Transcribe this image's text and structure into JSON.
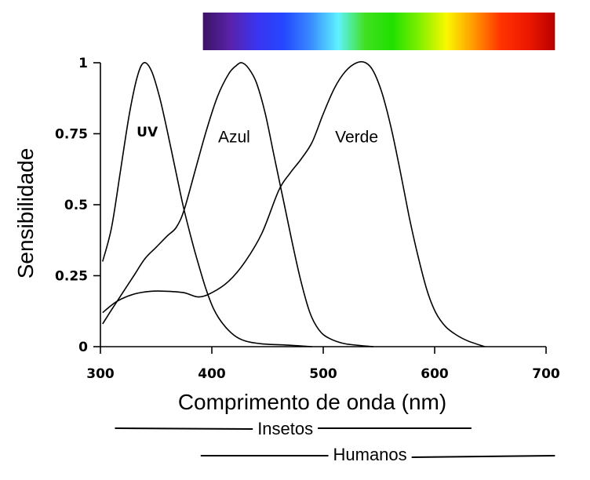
{
  "chart_data": {
    "type": "line",
    "xlabel": "Comprimento de onda (nm)",
    "ylabel": "Sensibilidade",
    "xlim": [
      300,
      700
    ],
    "ylim": [
      0,
      1
    ],
    "x_ticks": [
      300,
      400,
      500,
      600,
      700
    ],
    "y_ticks": [
      {
        "value": 0,
        "label": "0"
      },
      {
        "value": 0.25,
        "label": "0.25"
      },
      {
        "value": 0.5,
        "label": "0.5"
      },
      {
        "value": 0.75,
        "label": "0.75"
      },
      {
        "value": 1,
        "label": "1"
      }
    ],
    "grid": false,
    "series": [
      {
        "name": "UV",
        "points": [
          [
            302,
            0.3
          ],
          [
            310,
            0.42
          ],
          [
            318,
            0.62
          ],
          [
            326,
            0.82
          ],
          [
            333,
            0.95
          ],
          [
            339,
            1.0
          ],
          [
            346,
            0.97
          ],
          [
            353,
            0.88
          ],
          [
            360,
            0.76
          ],
          [
            367,
            0.63
          ],
          [
            374,
            0.5
          ],
          [
            381,
            0.39
          ],
          [
            388,
            0.29
          ],
          [
            395,
            0.2
          ],
          [
            402,
            0.13
          ],
          [
            410,
            0.08
          ],
          [
            420,
            0.04
          ],
          [
            430,
            0.02
          ],
          [
            445,
            0.01
          ],
          [
            470,
            0.005
          ],
          [
            490,
            0.0
          ]
        ]
      },
      {
        "name": "Azul",
        "points": [
          [
            302,
            0.08
          ],
          [
            310,
            0.13
          ],
          [
            320,
            0.19
          ],
          [
            330,
            0.25
          ],
          [
            340,
            0.31
          ],
          [
            350,
            0.35
          ],
          [
            360,
            0.39
          ],
          [
            368,
            0.42
          ],
          [
            375,
            0.48
          ],
          [
            385,
            0.62
          ],
          [
            395,
            0.76
          ],
          [
            405,
            0.88
          ],
          [
            415,
            0.96
          ],
          [
            422,
            0.99
          ],
          [
            427,
            1.0
          ],
          [
            433,
            0.98
          ],
          [
            440,
            0.93
          ],
          [
            448,
            0.82
          ],
          [
            456,
            0.67
          ],
          [
            464,
            0.52
          ],
          [
            472,
            0.37
          ],
          [
            480,
            0.23
          ],
          [
            488,
            0.12
          ],
          [
            496,
            0.06
          ],
          [
            505,
            0.03
          ],
          [
            520,
            0.01
          ],
          [
            545,
            0.0
          ]
        ]
      },
      {
        "name": "Verde",
        "points": [
          [
            302,
            0.12
          ],
          [
            315,
            0.16
          ],
          [
            330,
            0.185
          ],
          [
            345,
            0.195
          ],
          [
            360,
            0.195
          ],
          [
            375,
            0.19
          ],
          [
            388,
            0.175
          ],
          [
            400,
            0.19
          ],
          [
            415,
            0.23
          ],
          [
            430,
            0.3
          ],
          [
            445,
            0.4
          ],
          [
            460,
            0.55
          ],
          [
            470,
            0.61
          ],
          [
            480,
            0.66
          ],
          [
            490,
            0.72
          ],
          [
            500,
            0.82
          ],
          [
            510,
            0.91
          ],
          [
            520,
            0.97
          ],
          [
            530,
            1.0
          ],
          [
            538,
            1.0
          ],
          [
            545,
            0.97
          ],
          [
            553,
            0.89
          ],
          [
            561,
            0.77
          ],
          [
            569,
            0.62
          ],
          [
            577,
            0.46
          ],
          [
            585,
            0.32
          ],
          [
            593,
            0.2
          ],
          [
            601,
            0.12
          ],
          [
            610,
            0.07
          ],
          [
            620,
            0.04
          ],
          [
            630,
            0.02
          ],
          [
            645,
            0.0
          ]
        ]
      }
    ],
    "curve_labels": [
      {
        "text": "UV",
        "x": 342,
        "y": 0.74,
        "bold": true
      },
      {
        "text": "Azul",
        "x": 420,
        "y": 0.72,
        "bold": false
      },
      {
        "text": "Verde",
        "x": 530,
        "y": 0.72,
        "bold": false
      }
    ],
    "spectrum_bar": {
      "x_start": 392,
      "x_end": 708,
      "colors": [
        "#3b1464",
        "#5a22a8",
        "#3a34f0",
        "#2448ff",
        "#3a8cff",
        "#5ef2ff",
        "#40e020",
        "#20e000",
        "#80f000",
        "#f8f800",
        "#ff9900",
        "#ff3300",
        "#ee1800",
        "#b80000"
      ]
    },
    "visible_ranges": [
      {
        "name": "Insetos",
        "start": 313,
        "end": 633
      },
      {
        "name": "Humanos",
        "start": 390,
        "end": 708
      }
    ]
  }
}
